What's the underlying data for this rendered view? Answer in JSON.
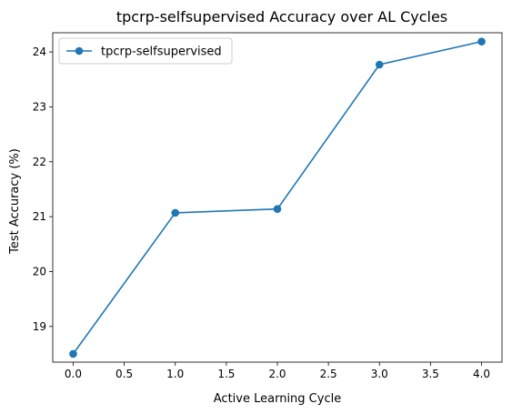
{
  "chart_data": {
    "type": "line",
    "title": "tpcrp-selfsupervised Accuracy over AL Cycles",
    "xlabel": "Active Learning Cycle",
    "ylabel": "Test Accuracy (%)",
    "xlim": [
      -0.2,
      4.2
    ],
    "ylim": [
      18.35,
      24.35
    ],
    "x_ticks": [
      0.0,
      0.5,
      1.0,
      1.5,
      2.0,
      2.5,
      3.0,
      3.5,
      4.0
    ],
    "x_tick_labels": [
      "0.0",
      "0.5",
      "1.0",
      "1.5",
      "2.0",
      "2.5",
      "3.0",
      "3.5",
      "4.0"
    ],
    "y_ticks": [
      19,
      20,
      21,
      22,
      23,
      24
    ],
    "y_tick_labels": [
      "19",
      "20",
      "21",
      "22",
      "23",
      "24"
    ],
    "grid": false,
    "legend_position": "top-left",
    "series": [
      {
        "name": "tpcrp-selfsupervised",
        "color": "#1f77b4",
        "marker": "circle",
        "x": [
          0,
          1,
          2,
          3,
          4
        ],
        "y": [
          18.5,
          21.07,
          21.14,
          23.77,
          24.19
        ]
      }
    ]
  }
}
